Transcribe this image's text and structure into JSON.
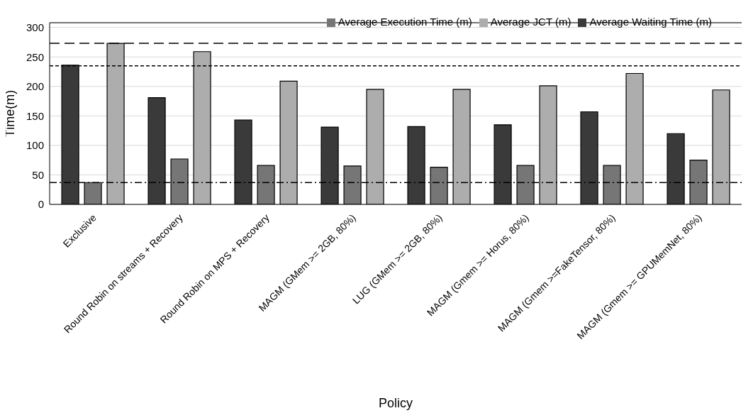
{
  "chart_data": {
    "type": "bar",
    "xlabel": "Policy",
    "ylabel": "Time(m)",
    "categories": [
      "Exclusive",
      "Round Robin on streams + Recovery",
      "Round Robin on MPS + Recovery",
      "MAGM (GMem >= 2GB, 80%)",
      "LUG (GMem >= 2GB, 80%)",
      "MAGM (Gmem >= Horus, 80%)",
      "MAGM (Gmem >=FakeTensor, 80%)",
      "MAGM (Gmem >= GPUMemNet, 80%)"
    ],
    "series": [
      {
        "name": "Average Waiting Time (m)",
        "color": "#3a3a3a",
        "values": [
          236,
          181,
          143,
          131,
          132,
          135,
          157,
          120
        ]
      },
      {
        "name": "Average Execution Time (m)",
        "color": "#767676",
        "values": [
          37,
          77,
          66,
          65,
          63,
          66,
          66,
          75
        ]
      },
      {
        "name": "Average JCT (m)",
        "color": "#adadad",
        "values": [
          273,
          259,
          209,
          195,
          195,
          201,
          222,
          194
        ]
      }
    ],
    "ylim": [
      0,
      308
    ],
    "yticks": [
      0,
      50,
      100,
      150,
      200,
      250,
      300
    ],
    "grid": "y",
    "legend": "top right",
    "ref_lines": [
      {
        "axis": "y",
        "value": 273,
        "line_style": "dashed",
        "color": "#000000"
      },
      {
        "axis": "y",
        "value": 235,
        "line_style": "dotted",
        "color": "#000000"
      },
      {
        "axis": "y",
        "value": 37,
        "line_style": "dashdot",
        "color": "#000000"
      }
    ]
  }
}
